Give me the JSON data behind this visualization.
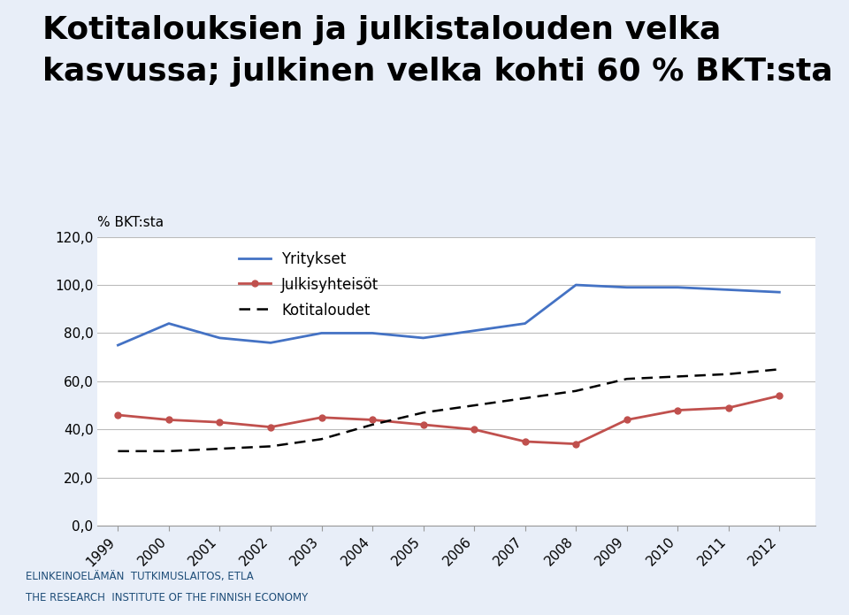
{
  "title_line1": "Kotitalouksien ja julkistalouden velka",
  "title_line2": "kasvussa; julkinen velka kohti 60 % BKT:sta",
  "ylabel": "% BKT:sta",
  "years": [
    1999,
    2000,
    2001,
    2002,
    2003,
    2004,
    2005,
    2006,
    2007,
    2008,
    2009,
    2010,
    2011,
    2012
  ],
  "yritykset": [
    75,
    84,
    78,
    76,
    80,
    80,
    78,
    81,
    84,
    100,
    99,
    99,
    98,
    97
  ],
  "julkisyhteisot": [
    46,
    44,
    43,
    41,
    45,
    44,
    42,
    40,
    35,
    34,
    44,
    48,
    49,
    54
  ],
  "kotitaloudet": [
    31,
    31,
    32,
    33,
    36,
    42,
    47,
    50,
    53,
    56,
    61,
    62,
    63,
    65
  ],
  "yritykset_color": "#4472C4",
  "julkisyhteisot_color": "#C0504D",
  "kotitaloudet_color": "#000000",
  "background_color": "#E8EEF8",
  "chart_bg": "#FFFFFF",
  "footer_bg": "#1F4E79",
  "footer_text_color": "#1F4E79",
  "footer_line1": "ELINKEINOELÄMÄN  TUTKIMUSLAITOS, ETLA",
  "footer_line2": "THE RESEARCH  INSTITUTE OF THE FINNISH ECONOMY",
  "ylim": [
    0,
    120
  ],
  "yticks": [
    0,
    20,
    40,
    60,
    80,
    100,
    120
  ],
  "ytick_labels": [
    "0,0",
    "20,0",
    "40,0",
    "60,0",
    "80,0",
    "100,0",
    "120,0"
  ],
  "title_fontsize": 26,
  "axis_fontsize": 11,
  "legend_fontsize": 12,
  "footer_fontsize": 8.5
}
